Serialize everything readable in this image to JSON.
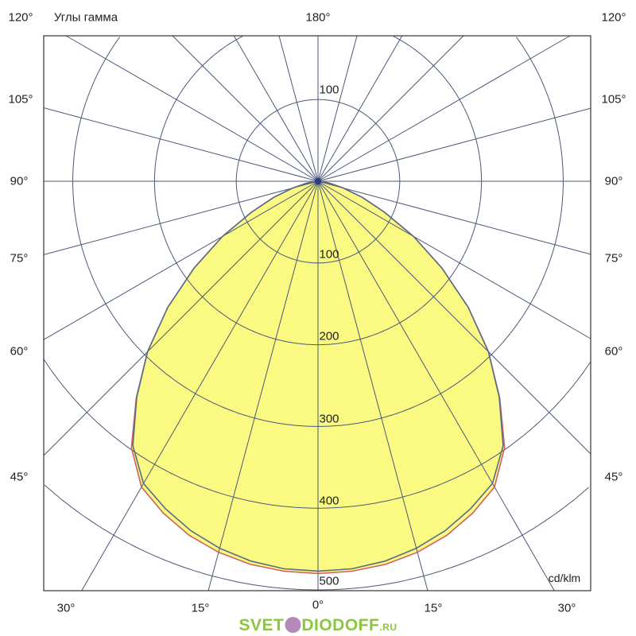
{
  "chart_data": {
    "type": "polar",
    "title": "Углы гамма",
    "unit_label": "cd/klm",
    "radial_ticks": [
      "100",
      "200",
      "300",
      "400",
      "500"
    ],
    "radial_tick_values": [
      100,
      200,
      300,
      400,
      500
    ],
    "radial_max": 500,
    "angle_step_deg": 15,
    "grid": true,
    "side_angle_labels": [
      "120°",
      "105°",
      "90°",
      "75°",
      "60°",
      "45°"
    ],
    "bottom_angle_labels": [
      "30°",
      "15°",
      "0°",
      "15°",
      "30°"
    ],
    "top_angle_label": "180°",
    "upper_ring_label": "100",
    "series": [
      {
        "color": "#5a6a8a",
        "gamma": [
          0,
          5,
          10,
          15,
          20,
          25,
          30,
          35,
          40,
          45,
          50,
          55,
          60,
          65,
          70,
          75,
          80,
          85,
          90
        ],
        "values": [
          477,
          476,
          472,
          465,
          455,
          442,
          427,
          395,
          345,
          295,
          240,
          185,
          135,
          90,
          58,
          32,
          15,
          5,
          0
        ]
      },
      {
        "color": "#d06060",
        "gamma": [
          0,
          5,
          10,
          15,
          20,
          25,
          30,
          35,
          40,
          45,
          50,
          55,
          60,
          65,
          70,
          75,
          80,
          85,
          90
        ],
        "values": [
          480,
          479,
          476,
          470,
          461,
          448,
          432,
          398,
          346,
          295,
          240,
          185,
          135,
          90,
          58,
          32,
          15,
          5,
          0
        ]
      }
    ],
    "fill_color": "#fafa82",
    "grid_color": "#4a5878"
  },
  "watermark": {
    "main": "SVET",
    "mid": "DIODOFF",
    "suffix": ".RU"
  }
}
